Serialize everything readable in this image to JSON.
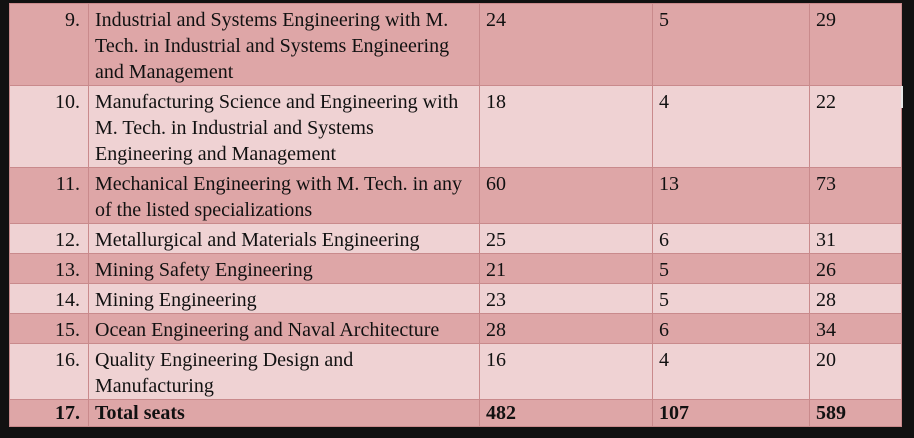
{
  "rows": [
    {
      "no": "9.",
      "program": "Industrial and Systems Engineering with M. Tech. in Industrial and Systems Engineering and Management",
      "col1": "24",
      "col2": "5",
      "col3": "29"
    },
    {
      "no": "10.",
      "program": "Manufacturing Science and Engineering with M. Tech. in Industrial and Systems Engineering and Management",
      "col1": "18",
      "col2": "4",
      "col3": "22"
    },
    {
      "no": "11.",
      "program": "Mechanical Engineering with M. Tech. in any of the listed specializations",
      "col1": "60",
      "col2": "13",
      "col3": "73"
    },
    {
      "no": "12.",
      "program": "Metallurgical and Materials Engineering",
      "col1": "25",
      "col2": "6",
      "col3": "31"
    },
    {
      "no": "13.",
      "program": "Mining Safety Engineering",
      "col1": "21",
      "col2": "5",
      "col3": "26"
    },
    {
      "no": "14.",
      "program": "Mining Engineering",
      "col1": "23",
      "col2": "5",
      "col3": "28"
    },
    {
      "no": "15.",
      "program": "Ocean Engineering and Naval Architecture",
      "col1": "28",
      "col2": "6",
      "col3": "34"
    },
    {
      "no": "16.",
      "program": "Quality Engineering Design and Manufacturing",
      "col1": "16",
      "col2": "4",
      "col3": "20"
    }
  ],
  "total": {
    "no": "17.",
    "label": "Total seats",
    "col1": "482",
    "col2": "107",
    "col3": "589"
  },
  "colors": {
    "row_dark": "#dea6a7",
    "row_light": "#efd2d3",
    "border": "#c98a8c",
    "background": "#111111"
  }
}
